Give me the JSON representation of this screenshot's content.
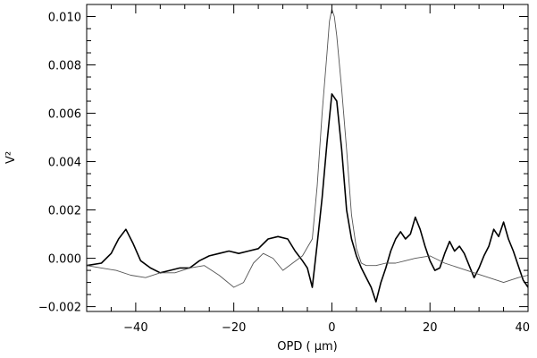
{
  "chart_data": {
    "type": "line",
    "title": "",
    "xlabel": "OPD ( μm)",
    "ylabel": "V²",
    "xlim": [
      -50,
      40
    ],
    "ylim": [
      -0.0022,
      0.0105
    ],
    "grid": false,
    "legend": "none",
    "xticks": [
      -40,
      -20,
      0,
      20,
      40
    ],
    "xtick_labels": [
      "−40",
      "−20",
      "0",
      "20",
      "40"
    ],
    "yticks": [
      -0.002,
      0.0,
      0.002,
      0.004,
      0.006,
      0.008,
      0.01
    ],
    "ytick_labels": [
      "−0.002",
      "0.000",
      "0.002",
      "0.004",
      "0.006",
      "0.008",
      "0.010"
    ],
    "series": [
      {
        "style": "solid-thick",
        "color": "#000000",
        "x": [
          -50,
          -47,
          -45,
          -43.5,
          -42,
          -40.5,
          -39,
          -37,
          -35,
          -33,
          -31,
          -29,
          -27,
          -25,
          -23,
          -21,
          -19,
          -17,
          -15,
          -13,
          -11,
          -9,
          -7.5,
          -6,
          -5,
          -4,
          -3,
          -2,
          -1,
          0,
          1,
          2,
          3,
          4,
          5,
          6,
          7,
          8,
          9,
          10,
          11,
          12,
          13,
          14,
          15,
          16,
          17,
          18,
          19,
          20,
          21,
          22,
          23,
          24,
          25,
          26,
          27,
          28,
          29,
          30,
          31,
          32,
          33,
          34,
          35,
          36,
          37,
          38,
          39,
          40
        ],
        "y": [
          -0.0003,
          -0.0002,
          0.0002,
          0.0008,
          0.0012,
          0.0006,
          -0.0001,
          -0.0004,
          -0.0006,
          -0.0005,
          -0.0004,
          -0.0004,
          -0.0001,
          0.0001,
          0.0002,
          0.0003,
          0.0002,
          0.0003,
          0.0004,
          0.0008,
          0.0009,
          0.0008,
          0.0003,
          -0.0001,
          -0.0004,
          -0.0012,
          0.0006,
          0.0025,
          0.0048,
          0.0068,
          0.0065,
          0.0045,
          0.002,
          0.0008,
          0.0001,
          -0.0004,
          -0.0008,
          -0.0012,
          -0.0018,
          -0.001,
          -0.0004,
          0.0003,
          0.0008,
          0.0011,
          0.0008,
          0.001,
          0.0017,
          0.0012,
          0.0005,
          -0.0001,
          -0.0005,
          -0.0004,
          0.0002,
          0.0007,
          0.0003,
          0.0005,
          0.0002,
          -0.0003,
          -0.0008,
          -0.0004,
          0.0001,
          0.0005,
          0.0012,
          0.0009,
          0.0015,
          0.0008,
          0.0003,
          -0.0003,
          -0.0009,
          -0.0012
        ]
      },
      {
        "style": "solid-thin",
        "color": "#555555",
        "x": [
          -50,
          -47,
          -44,
          -41,
          -38,
          -35,
          -32,
          -29,
          -26,
          -23,
          -20,
          -18,
          -16,
          -14,
          -12,
          -10,
          -8,
          -6,
          -4,
          -3,
          -2,
          -1,
          -0.5,
          0,
          0.5,
          1,
          2,
          3,
          4,
          5,
          6,
          7,
          9,
          11,
          13,
          15,
          17,
          20,
          23,
          26,
          29,
          32,
          35,
          38,
          40
        ],
        "y": [
          -0.0003,
          -0.0004,
          -0.0005,
          -0.0007,
          -0.0008,
          -0.0006,
          -0.0006,
          -0.0004,
          -0.0003,
          -0.0007,
          -0.0012,
          -0.001,
          -0.0002,
          0.0002,
          0.0,
          -0.0005,
          -0.0002,
          0.0001,
          0.0008,
          0.003,
          0.006,
          0.0085,
          0.0098,
          0.0103,
          0.01,
          0.0092,
          0.007,
          0.0045,
          0.0018,
          0.0004,
          -0.0002,
          -0.0003,
          -0.0003,
          -0.0002,
          -0.0002,
          -0.0001,
          0.0,
          0.0001,
          -0.0002,
          -0.0004,
          -0.0006,
          -0.0008,
          -0.001,
          -0.0008,
          -0.0007
        ]
      }
    ]
  }
}
